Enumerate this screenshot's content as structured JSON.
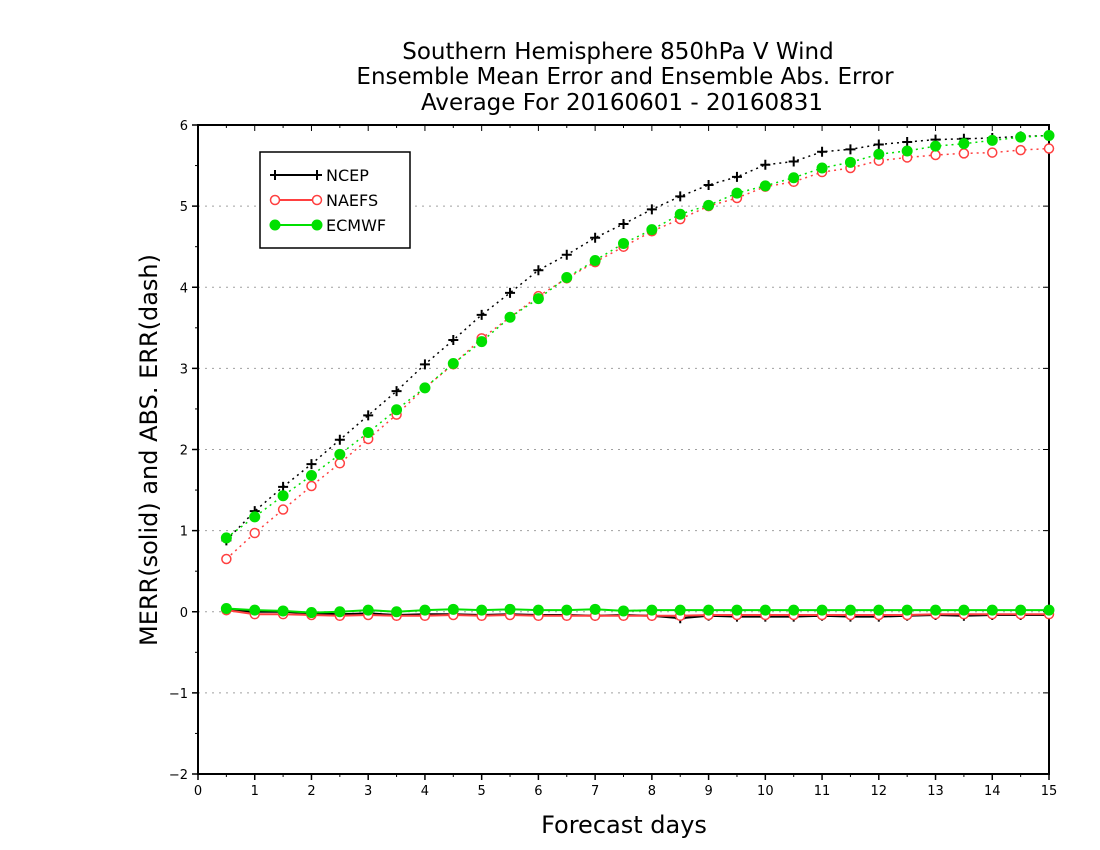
{
  "chart_data": {
    "type": "line",
    "title_lines": [
      "Southern Hemisphere 850hPa V Wind",
      "Ensemble Mean Error and Ensemble Abs. Error",
      "Average For 20160601 - 20160831"
    ],
    "xlabel": "Forecast days",
    "ylabel": "MERR(solid) and ABS. ERR(dash)",
    "xlim": [
      0,
      15
    ],
    "ylim": [
      -2,
      6
    ],
    "x_ticks": [
      0,
      1,
      2,
      3,
      4,
      5,
      6,
      7,
      8,
      9,
      10,
      11,
      12,
      13,
      14,
      15
    ],
    "y_ticks": [
      -2,
      -1,
      0,
      1,
      2,
      3,
      4,
      5,
      6
    ],
    "y_tick_labels": [
      "−2",
      "−1",
      "0",
      "1",
      "2",
      "3",
      "4",
      "5",
      "6"
    ],
    "grid": "horizontal dotted",
    "legend_position": "top-left",
    "x": [
      0.5,
      1,
      1.5,
      2,
      2.5,
      3,
      3.5,
      4,
      4.5,
      5,
      5.5,
      6,
      6.5,
      7,
      7.5,
      8,
      8.5,
      9,
      9.5,
      10,
      10.5,
      11,
      11.5,
      12,
      12.5,
      13,
      13.5,
      14,
      14.5,
      15
    ],
    "series": [
      {
        "name": "NCEP",
        "color": "#000000",
        "marker": "plus",
        "abs_err": [
          0.88,
          1.24,
          1.54,
          1.82,
          2.12,
          2.42,
          2.72,
          3.05,
          3.35,
          3.66,
          3.93,
          4.21,
          4.4,
          4.61,
          4.78,
          4.96,
          5.12,
          5.26,
          5.36,
          5.51,
          5.55,
          5.67,
          5.7,
          5.76,
          5.79,
          5.82,
          5.83,
          5.84,
          5.86,
          5.87
        ],
        "mean_err": [
          0.02,
          0.0,
          0.0,
          -0.02,
          -0.03,
          -0.02,
          -0.04,
          -0.03,
          -0.03,
          -0.04,
          -0.03,
          -0.04,
          -0.04,
          -0.05,
          -0.04,
          -0.05,
          -0.08,
          -0.05,
          -0.06,
          -0.06,
          -0.06,
          -0.05,
          -0.06,
          -0.06,
          -0.05,
          -0.04,
          -0.05,
          -0.04,
          -0.04,
          -0.04
        ]
      },
      {
        "name": "NAEFS",
        "color": "#ff4040",
        "marker": "open-circle",
        "abs_err": [
          0.65,
          0.97,
          1.26,
          1.55,
          1.83,
          2.13,
          2.43,
          2.76,
          3.05,
          3.37,
          3.63,
          3.89,
          4.11,
          4.31,
          4.5,
          4.69,
          4.84,
          5.0,
          5.1,
          5.24,
          5.3,
          5.42,
          5.47,
          5.56,
          5.6,
          5.63,
          5.65,
          5.66,
          5.69,
          5.71
        ],
        "mean_err": [
          0.02,
          -0.03,
          -0.03,
          -0.04,
          -0.05,
          -0.04,
          -0.05,
          -0.05,
          -0.04,
          -0.05,
          -0.04,
          -0.05,
          -0.05,
          -0.05,
          -0.05,
          -0.05,
          -0.05,
          -0.04,
          -0.04,
          -0.04,
          -0.04,
          -0.04,
          -0.04,
          -0.04,
          -0.04,
          -0.03,
          -0.03,
          -0.03,
          -0.03,
          -0.03
        ]
      },
      {
        "name": "ECMWF",
        "color": "#00e000",
        "marker": "filled-circle",
        "abs_err": [
          0.91,
          1.17,
          1.43,
          1.68,
          1.94,
          2.21,
          2.49,
          2.76,
          3.06,
          3.33,
          3.63,
          3.86,
          4.12,
          4.33,
          4.54,
          4.71,
          4.9,
          5.01,
          5.16,
          5.25,
          5.35,
          5.47,
          5.54,
          5.64,
          5.68,
          5.74,
          5.77,
          5.81,
          5.85,
          5.87
        ],
        "mean_err": [
          0.04,
          0.02,
          0.01,
          -0.01,
          0.0,
          0.02,
          0.0,
          0.02,
          0.03,
          0.02,
          0.03,
          0.02,
          0.02,
          0.03,
          0.01,
          0.02,
          0.02,
          0.02,
          0.02,
          0.02,
          0.02,
          0.02,
          0.02,
          0.02,
          0.02,
          0.02,
          0.02,
          0.02,
          0.02,
          0.02
        ]
      }
    ]
  }
}
